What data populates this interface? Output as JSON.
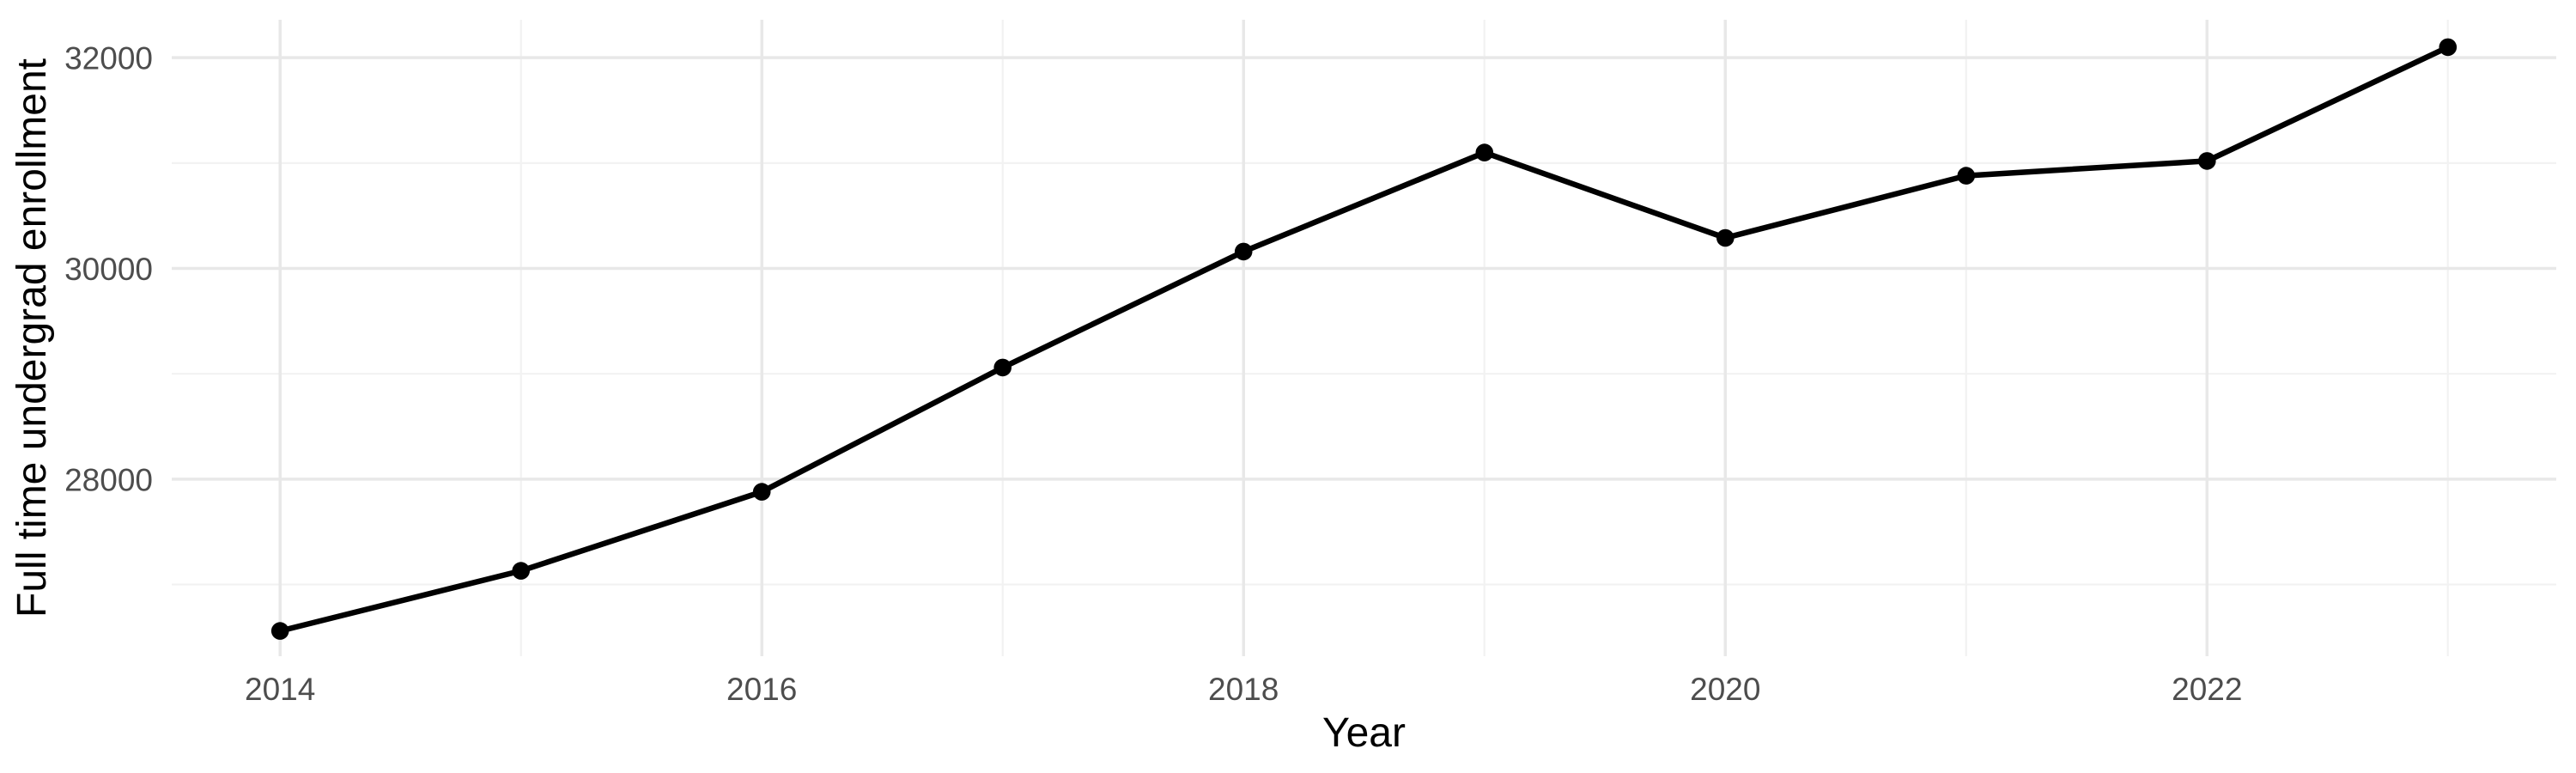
{
  "page": {
    "background": "#ffffff"
  },
  "chart_data": {
    "type": "line",
    "title": "",
    "xlabel": "Year",
    "ylabel": "Full time undergrad enrollment",
    "x": [
      2014,
      2015,
      2016,
      2017,
      2018,
      2019,
      2020,
      2021,
      2022,
      2023
    ],
    "series": [
      {
        "name": "Full time undergrad enrollment",
        "values": [
          26560,
          27130,
          27880,
          29060,
          30160,
          31100,
          30290,
          30880,
          31020,
          32100
        ]
      }
    ],
    "x_axis": {
      "range": [
        2013.55,
        2023.45
      ],
      "major_breaks": [
        2014,
        2016,
        2018,
        2020,
        2022
      ],
      "major_labels": [
        "2014",
        "2016",
        "2018",
        "2020",
        "2022"
      ],
      "minor_breaks": [
        2015,
        2017,
        2019,
        2021,
        2023
      ]
    },
    "y_axis": {
      "range": [
        26320,
        32360
      ],
      "major_breaks": [
        28000,
        30000,
        32000
      ],
      "major_labels": [
        "28000",
        "30000",
        "32000"
      ],
      "minor_breaks": [
        27000,
        29000,
        31000
      ]
    },
    "grid": true,
    "legend": "none",
    "style": {
      "line_color": "#000000",
      "point_color": "#000000",
      "grid_major_color": "#e8e8e8",
      "grid_minor_color": "#f2f2f2",
      "tick_label_color": "#4d4d4d",
      "axis_title_color": "#000000",
      "line_width": 6.5,
      "point_radius": 10.3,
      "grid_major_width": 3.5,
      "grid_minor_width": 2.2,
      "tick_font_size": 37
    }
  }
}
